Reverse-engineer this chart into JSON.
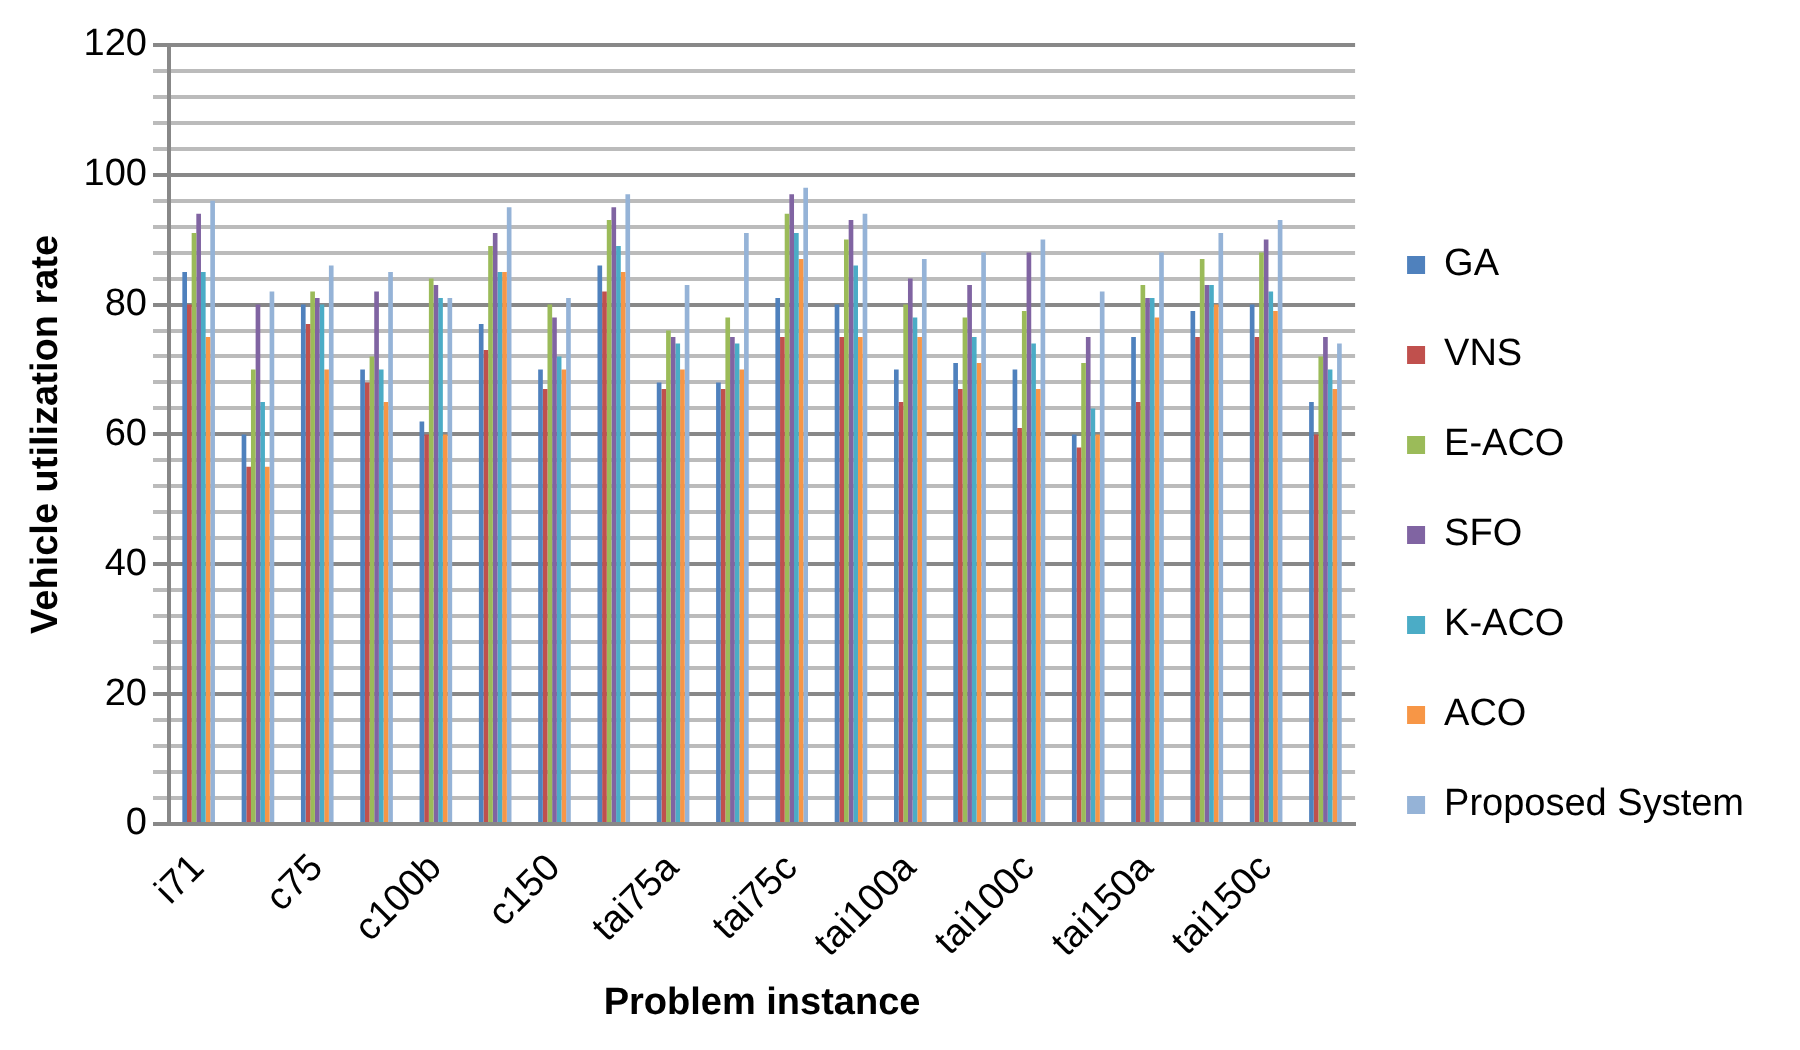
{
  "chart_data": {
    "type": "bar",
    "xlabel": "Problem instance",
    "ylabel": "Vehicle utilization rate",
    "categories": [
      "i71",
      null,
      "c75",
      null,
      "c100b",
      null,
      "c150",
      null,
      "tai75a",
      null,
      "tai75c",
      null,
      "tai100a",
      null,
      "tai100c",
      null,
      "tai150a",
      null,
      "tai150c",
      null
    ],
    "series": [
      {
        "name": "GA",
        "color": "#4f81bd",
        "values": [
          85,
          60,
          80,
          70,
          62,
          77,
          70,
          86,
          68,
          68,
          81,
          80,
          70,
          71,
          70,
          60,
          75,
          79,
          80,
          65
        ]
      },
      {
        "name": "VNS",
        "color": "#c0504d",
        "values": [
          80,
          55,
          77,
          68,
          60,
          73,
          67,
          82,
          67,
          67,
          75,
          75,
          65,
          67,
          61,
          58,
          65,
          75,
          75,
          60
        ]
      },
      {
        "name": "E-ACO",
        "color": "#9bbb59",
        "values": [
          91,
          70,
          82,
          72,
          84,
          89,
          80,
          93,
          76,
          78,
          94,
          90,
          80,
          78,
          79,
          71,
          83,
          87,
          88,
          72
        ]
      },
      {
        "name": "SFO",
        "color": "#8064a2",
        "values": [
          94,
          80,
          81,
          82,
          83,
          91,
          78,
          95,
          75,
          75,
          97,
          93,
          84,
          83,
          88,
          75,
          81,
          83,
          90,
          75
        ]
      },
      {
        "name": "K-ACO",
        "color": "#4bacc6",
        "values": [
          85,
          65,
          80,
          70,
          81,
          85,
          72,
          89,
          74,
          74,
          91,
          86,
          78,
          75,
          74,
          64,
          81,
          83,
          82,
          70
        ]
      },
      {
        "name": "ACO",
        "color": "#f79646",
        "values": [
          75,
          55,
          70,
          65,
          60,
          85,
          70,
          85,
          70,
          70,
          87,
          75,
          75,
          71,
          67,
          60,
          78,
          80,
          79,
          67
        ]
      },
      {
        "name": "Proposed System",
        "color": "#95b3d7",
        "values": [
          96,
          82,
          86,
          85,
          81,
          95,
          81,
          97,
          83,
          91,
          98,
          94,
          87,
          88,
          90,
          82,
          88,
          91,
          93,
          74
        ]
      }
    ],
    "ylim": [
      0,
      120
    ],
    "yticks": [
      0,
      {
        "value": 4,
        "label": null
      },
      {
        "value": 8,
        "label": null
      },
      {
        "value": 12,
        "label": null
      },
      {
        "value": 16,
        "label": null
      },
      20,
      {
        "value": 24,
        "label": null
      },
      {
        "value": 28,
        "label": null
      },
      {
        "value": 32,
        "label": null
      },
      {
        "value": 36,
        "label": null
      },
      40,
      {
        "value": 44,
        "label": null
      },
      {
        "value": 48,
        "label": null
      },
      {
        "value": 52,
        "label": null
      },
      {
        "value": 56,
        "label": null
      },
      60,
      {
        "value": 64,
        "label": null
      },
      {
        "value": 68,
        "label": null
      },
      {
        "value": 72,
        "label": null
      },
      {
        "value": 76,
        "label": null
      },
      80,
      {
        "value": 84,
        "label": null
      },
      {
        "value": 88,
        "label": null
      },
      {
        "value": 92,
        "label": null
      },
      {
        "value": 96,
        "label": null
      },
      100,
      {
        "value": 104,
        "label": null
      },
      {
        "value": 108,
        "label": null
      },
      {
        "value": 112,
        "label": null
      },
      {
        "value": 116,
        "label": null
      },
      120
    ],
    "grid": "y",
    "legend": "right"
  }
}
